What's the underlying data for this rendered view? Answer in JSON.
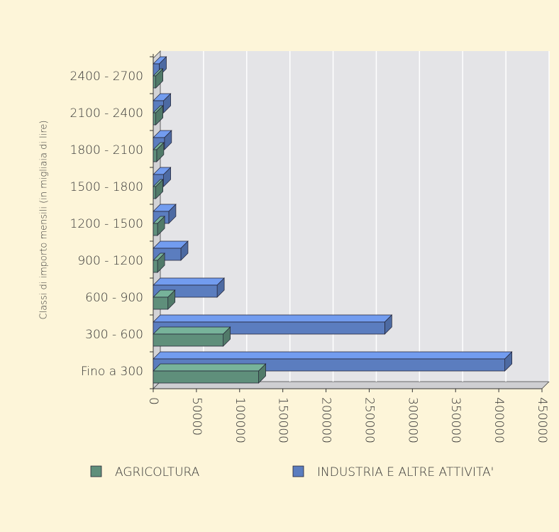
{
  "chart_data": {
    "type": "bar3d_horizontal",
    "y_axis_label": "Classi di importo mensili  (in migliaia di lire)",
    "categories": [
      "Fino a 300",
      "300 - 600",
      "600 - 900",
      "900 - 1200",
      "1200 - 1500",
      "1500 - 1800",
      "1800 - 2100",
      "2100 - 2400",
      "2400 - 2700"
    ],
    "series": [
      {
        "name": "AGRICOLTURA",
        "color": "#5f8f7b",
        "values": [
          122000,
          81000,
          17000,
          5000,
          5000,
          3000,
          4000,
          3000,
          3000
        ]
      },
      {
        "name": "INDUSTRIA E ALTRE ATTIVITA'",
        "color": "#5b7dbf",
        "values": [
          407000,
          268000,
          74000,
          32000,
          18000,
          12000,
          13000,
          12000,
          7000
        ]
      }
    ],
    "xlim": [
      0,
      450000
    ],
    "xticks": [
      0,
      50000,
      100000,
      150000,
      200000,
      250000,
      300000,
      350000,
      400000,
      450000
    ],
    "grid": true
  }
}
